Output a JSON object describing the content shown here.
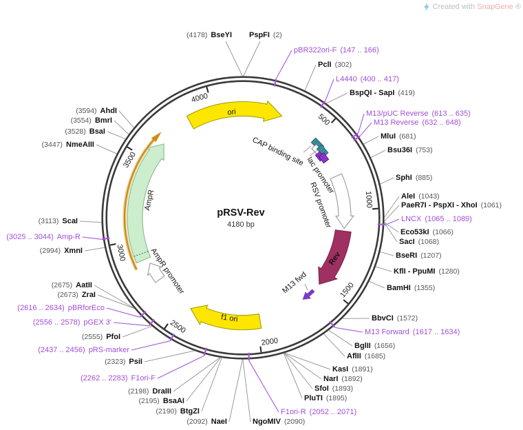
{
  "watermark": {
    "created_with": "Created with",
    "brand": "SnapGene",
    "registered": "®"
  },
  "plasmid": {
    "name": "pRSV-Rev",
    "size_label": "4180 bp",
    "length_bp": 4180
  },
  "ticks": [
    {
      "label": "500",
      "pos": 500
    },
    {
      "label": "1000",
      "pos": 1000
    },
    {
      "label": "1500",
      "pos": 1500
    },
    {
      "label": "2000",
      "pos": 2000
    },
    {
      "label": "2500",
      "pos": 2500
    },
    {
      "label": "3000",
      "pos": 3000
    },
    {
      "label": "3500",
      "pos": 3500
    },
    {
      "label": "4000",
      "pos": 4000
    }
  ],
  "features": [
    {
      "label": "ori",
      "type": "origin-of-replication"
    },
    {
      "label": "CAP binding site",
      "type": "protein-binding-site"
    },
    {
      "label": "lac promoter",
      "type": "promoter"
    },
    {
      "label": "RSV promoter",
      "type": "promoter"
    },
    {
      "label": "Rev",
      "type": "cds"
    },
    {
      "label": "M13 fwd",
      "type": "primer-site"
    },
    {
      "label": "f1 ori",
      "type": "origin-of-replication"
    },
    {
      "label": "AmpR",
      "type": "cds"
    },
    {
      "label": "AmpR promoter",
      "type": "promoter"
    }
  ],
  "sites": [
    {
      "name": "BseYI",
      "pos": "(4178)",
      "kind": "enzyme",
      "side": "L"
    },
    {
      "name": "PspFI",
      "pos": "(2)",
      "kind": "enzyme",
      "side": "R"
    },
    {
      "name": "pBR322ori-F",
      "pos": "(147 .. 166)",
      "kind": "primer",
      "side": "R"
    },
    {
      "name": "PclI",
      "pos": "(302)",
      "kind": "enzyme",
      "side": "R"
    },
    {
      "name": "L4440",
      "pos": "(400 .. 417)",
      "kind": "primer",
      "side": "R"
    },
    {
      "name": "BspQI - SapI",
      "pos": "(419)",
      "kind": "enzyme",
      "side": "R"
    },
    {
      "name": "M13/pUC Reverse",
      "pos": "(613 .. 635)",
      "kind": "primer",
      "side": "R"
    },
    {
      "name": "M13 Reverse",
      "pos": "(632 .. 648)",
      "kind": "primer",
      "side": "R"
    },
    {
      "name": "MluI",
      "pos": "(681)",
      "kind": "enzyme",
      "side": "R"
    },
    {
      "name": "Bsu36I",
      "pos": "(753)",
      "kind": "enzyme",
      "side": "R"
    },
    {
      "name": "SphI",
      "pos": "(885)",
      "kind": "enzyme",
      "side": "R"
    },
    {
      "name": "AleI",
      "pos": "(1043)",
      "kind": "enzyme",
      "side": "R"
    },
    {
      "name": "PaeR7I - PspXI - XhoI",
      "pos": "(1061)",
      "kind": "enzyme",
      "side": "R"
    },
    {
      "name": "LNCX",
      "pos": "(1065 .. 1089)",
      "kind": "primer",
      "side": "R"
    },
    {
      "name": "Eco53kI",
      "pos": "(1066)",
      "kind": "enzyme",
      "side": "R"
    },
    {
      "name": "SacI",
      "pos": "(1068)",
      "kind": "enzyme",
      "side": "R"
    },
    {
      "name": "BseRI",
      "pos": "(1207)",
      "kind": "enzyme",
      "side": "R"
    },
    {
      "name": "KflI - PpuMI",
      "pos": "(1280)",
      "kind": "enzyme",
      "side": "R"
    },
    {
      "name": "BamHI",
      "pos": "(1355)",
      "kind": "enzyme",
      "side": "R"
    },
    {
      "name": "BbvCI",
      "pos": "(1572)",
      "kind": "enzyme",
      "side": "R"
    },
    {
      "name": "M13 Forward",
      "pos": "(1617 .. 1634)",
      "kind": "primer",
      "side": "R"
    },
    {
      "name": "BglII",
      "pos": "(1656)",
      "kind": "enzyme",
      "side": "R"
    },
    {
      "name": "AflII",
      "pos": "(1685)",
      "kind": "enzyme",
      "side": "R"
    },
    {
      "name": "KasI",
      "pos": "(1891)",
      "kind": "enzyme",
      "side": "R"
    },
    {
      "name": "NarI",
      "pos": "(1892)",
      "kind": "enzyme",
      "side": "R"
    },
    {
      "name": "SfoI",
      "pos": "(1893)",
      "kind": "enzyme",
      "side": "R"
    },
    {
      "name": "PluTI",
      "pos": "(1895)",
      "kind": "enzyme",
      "side": "R"
    },
    {
      "name": "F1ori-R",
      "pos": "(2052 .. 2071)",
      "kind": "primer",
      "side": "R"
    },
    {
      "name": "NgoMIV",
      "pos": "(2090)",
      "kind": "enzyme",
      "side": "R"
    },
    {
      "name": "NaeI",
      "pos": "(2092)",
      "kind": "enzyme",
      "side": "L"
    },
    {
      "name": "BtgZI",
      "pos": "(2190)",
      "kind": "enzyme",
      "side": "L"
    },
    {
      "name": "BsaAI",
      "pos": "(2195)",
      "kind": "enzyme",
      "side": "L"
    },
    {
      "name": "DraIII",
      "pos": "(2198)",
      "kind": "enzyme",
      "side": "L"
    },
    {
      "name": "F1ori-F",
      "pos": "(2262 .. 2283)",
      "kind": "primer",
      "side": "L"
    },
    {
      "name": "PsiI",
      "pos": "(2323)",
      "kind": "enzyme",
      "side": "L"
    },
    {
      "name": "pRS-marker",
      "pos": "(2437 .. 2456)",
      "kind": "primer",
      "side": "L"
    },
    {
      "name": "PfoI",
      "pos": "(2555)",
      "kind": "enzyme",
      "side": "L"
    },
    {
      "name": "pGEX 3'",
      "pos": "(2556 .. 2578)",
      "kind": "primer",
      "side": "L"
    },
    {
      "name": "pBRforEco",
      "pos": "(2616 .. 2634)",
      "kind": "primer",
      "side": "L"
    },
    {
      "name": "ZraI",
      "pos": "(2673)",
      "kind": "enzyme",
      "side": "L"
    },
    {
      "name": "AatII",
      "pos": "(2675)",
      "kind": "enzyme",
      "side": "L"
    },
    {
      "name": "XmnI",
      "pos": "(2994)",
      "kind": "enzyme",
      "side": "L"
    },
    {
      "name": "Amp-R",
      "pos": "(3025 .. 3044)",
      "kind": "primer",
      "side": "L"
    },
    {
      "name": "ScaI",
      "pos": "(3113)",
      "kind": "enzyme",
      "side": "L"
    },
    {
      "name": "NmeAIII",
      "pos": "(3447)",
      "kind": "enzyme",
      "side": "L"
    },
    {
      "name": "BsaI",
      "pos": "(3528)",
      "kind": "enzyme",
      "side": "L"
    },
    {
      "name": "BmrI",
      "pos": "(3554)",
      "kind": "enzyme",
      "side": "L"
    },
    {
      "name": "AhdI",
      "pos": "(3594)",
      "kind": "enzyme",
      "side": "L"
    }
  ],
  "colors": {
    "primer_text": "#a14fd6",
    "primer_line": "#a855dd",
    "enzyme_line": "#9a9a9a",
    "ring": "#3a3a3a",
    "tick": "#222222",
    "yellow": "#ffe600",
    "yellow_stroke": "#a0a000",
    "rev_fill": "#a03062",
    "rev_stroke": "#7c2450",
    "green_fill": "#cdeecd",
    "green_stroke": "#8ab88a",
    "white_arrow_stroke": "#999999",
    "amber": "#cf8d13",
    "amber_halo": "#ecd9a8",
    "teal_box": "#3d8899",
    "teal_box_stroke": "#256a77",
    "purple_box": "#8b34cb",
    "purple_box_stroke": "#5c1d8a",
    "watermark_gray": "#b9bec6",
    "watermark_red": "#efadad",
    "watermark_blue": "#85c9e8"
  }
}
